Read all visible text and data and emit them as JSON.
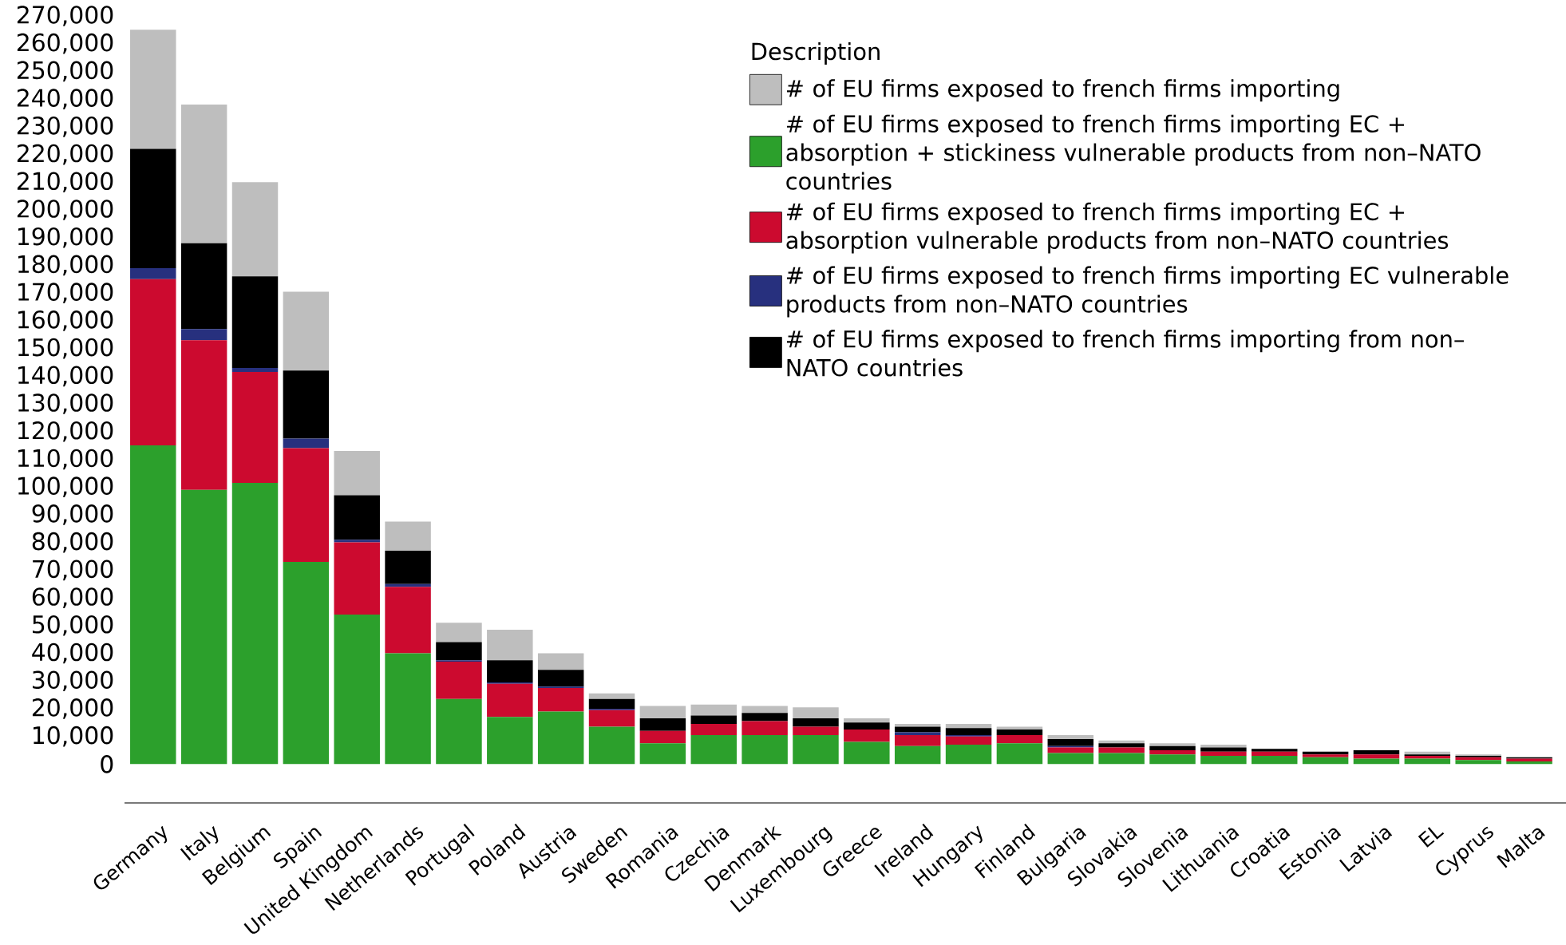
{
  "chart_data": {
    "type": "bar",
    "stacked": true,
    "legend": "top right",
    "legend_title": "Description",
    "grid": false,
    "categories": [
      "Germany",
      "Italy",
      "Belgium",
      "Spain",
      "United Kingdom",
      "Netherlands",
      "Portugal",
      "Poland",
      "Austria",
      "Sweden",
      "Romania",
      "Czechia",
      "Denmark",
      "Luxembourg",
      "Greece",
      "Ireland",
      "Hungary",
      "Finland",
      "Bulgaria",
      "Slovakia",
      "Slovenia",
      "Lithuania",
      "Croatia",
      "Estonia",
      "Latvia",
      "EL",
      "Cyprus",
      "Malta"
    ],
    "ylim": [
      -14000,
      270000
    ],
    "yticks": [
      {
        "value": 0,
        "label": "0"
      },
      {
        "value": 10000,
        "label": "10,000"
      },
      {
        "value": 20000,
        "label": "20,000"
      },
      {
        "value": 30000,
        "label": "30,000"
      },
      {
        "value": 40000,
        "label": "40,000"
      },
      {
        "value": 50000,
        "label": "50,000"
      },
      {
        "value": 60000,
        "label": "60,000"
      },
      {
        "value": 70000,
        "label": "70,000"
      },
      {
        "value": 80000,
        "label": "80,000"
      },
      {
        "value": 90000,
        "label": "90,000"
      },
      {
        "value": 100000,
        "label": "100,000"
      },
      {
        "value": 110000,
        "label": "110,000"
      },
      {
        "value": 120000,
        "label": "120,000"
      },
      {
        "value": 130000,
        "label": "130,000"
      },
      {
        "value": 140000,
        "label": "140,000"
      },
      {
        "value": 150000,
        "label": "150,000"
      },
      {
        "value": 160000,
        "label": "160,000"
      },
      {
        "value": 170000,
        "label": "170,000"
      },
      {
        "value": 180000,
        "label": "180,000"
      },
      {
        "value": 190000,
        "label": "190,000"
      },
      {
        "value": 200000,
        "label": "200,000"
      },
      {
        "value": 210000,
        "label": "210,000"
      },
      {
        "value": 220000,
        "label": "220,000"
      },
      {
        "value": 230000,
        "label": "230,000"
      },
      {
        "value": 240000,
        "label": "240,000"
      },
      {
        "value": 250000,
        "label": "250,000"
      },
      {
        "value": 260000,
        "label": "260,000"
      },
      {
        "value": 270000,
        "label": "270,000"
      }
    ],
    "series": [
      {
        "name": "# of EU firms exposed to french firms importing EC + absorption + stickiness vulnerable products from non–NATO countries",
        "color": "#2ca02c",
        "values": [
          115000,
          99000,
          101500,
          73000,
          54000,
          40000,
          23500,
          17000,
          19000,
          13500,
          7500,
          10500,
          10500,
          10500,
          8000,
          6500,
          7000,
          7500,
          4000,
          4000,
          3500,
          3000,
          3000,
          2500,
          2000,
          2000,
          1500,
          1000
        ]
      },
      {
        "name": "# of EU firms exposed to french firms importing EC + absorption vulnerable products from non–NATO countries",
        "color": "#cc0a2f",
        "values": [
          60000,
          54000,
          40000,
          41000,
          26000,
          24000,
          13500,
          12000,
          8500,
          6000,
          4500,
          4000,
          5000,
          3000,
          4500,
          4000,
          3000,
          3000,
          2000,
          2000,
          1500,
          1500,
          1500,
          1000,
          1500,
          1000,
          1000,
          1000
        ]
      },
      {
        "name": "# of EU firms exposed to french firms importing EC vulnerable products from non–NATO countries",
        "color": "#27307e",
        "values": [
          4000,
          4000,
          1500,
          3500,
          1000,
          1000,
          500,
          500,
          500,
          500,
          null,
          null,
          null,
          null,
          null,
          1000,
          500,
          null,
          500,
          null,
          null,
          null,
          null,
          null,
          null,
          null,
          null,
          null
        ]
      },
      {
        "name": "# of EU firms exposed to french firms importing from non–NATO countries",
        "color": "#000000",
        "values": [
          43000,
          31000,
          33000,
          24500,
          16000,
          12000,
          6500,
          8000,
          6000,
          3500,
          4500,
          3000,
          3000,
          3000,
          2500,
          2000,
          2500,
          2000,
          2500,
          1500,
          1500,
          1500,
          1000,
          1000,
          1500,
          500,
          500,
          500
        ]
      },
      {
        "name": "# of EU firms exposed to french firms importing",
        "color": "#bebebe",
        "values": [
          43000,
          50000,
          34000,
          28500,
          16000,
          10500,
          7000,
          11000,
          6000,
          2000,
          4500,
          4000,
          2500,
          4000,
          1500,
          1000,
          1500,
          1000,
          1500,
          1000,
          1000,
          1000,
          null,
          null,
          null,
          1000,
          500,
          null
        ]
      }
    ]
  }
}
